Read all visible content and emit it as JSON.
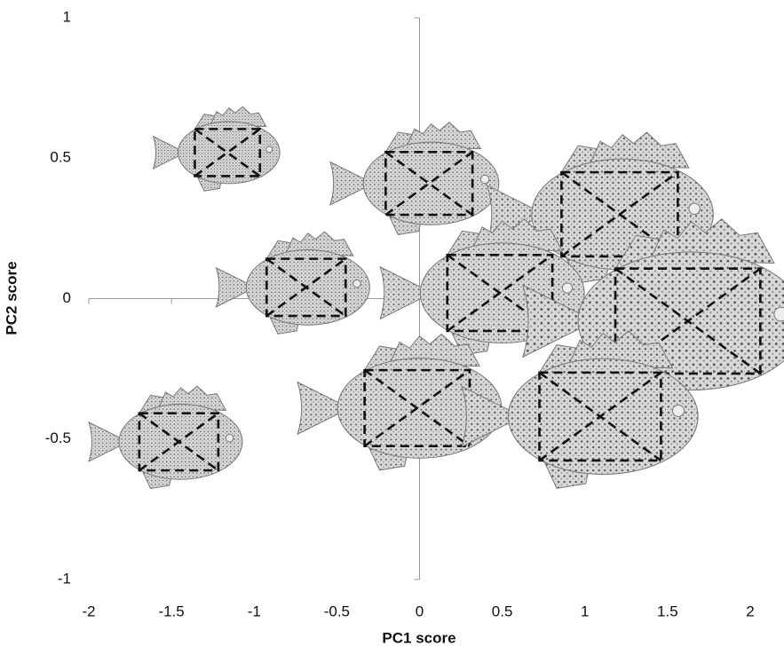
{
  "chart_data": {
    "type": "scatter",
    "x_label": "PC1 score",
    "y_label": "PC2 score",
    "xlim": [
      -2,
      2
    ],
    "ylim": [
      -1,
      1
    ],
    "xticks": [
      -2,
      -1.5,
      -1,
      -0.5,
      0,
      0.5,
      1,
      1.5,
      2
    ],
    "yticks": [
      -1,
      -0.5,
      0,
      0.5,
      1
    ],
    "series": [
      {
        "color": "#9a9a9a",
        "x": [
          -1.19,
          0.02,
          1.16,
          -0.72,
          0.44,
          1.56,
          -1.49,
          -0.06,
          1.04
        ],
        "values": [
          0.52,
          0.41,
          0.3,
          0.04,
          0.02,
          -0.08,
          -0.51,
          -0.39,
          -0.42
        ],
        "sizes": [
          0.75,
          1.0,
          1.34,
          0.91,
          1.21,
          1.67,
          0.91,
          1.21,
          1.4
        ]
      }
    ]
  }
}
